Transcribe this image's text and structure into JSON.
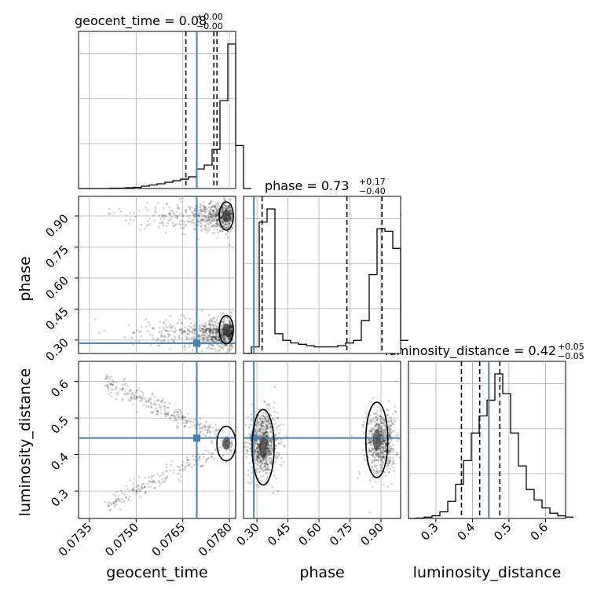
{
  "chart_data": {
    "type": "corner",
    "parameters": [
      "geocent_time",
      "phase",
      "luminosity_distance"
    ],
    "axis_labels": [
      "geocent_time",
      "phase",
      "luminosity_distance"
    ],
    "titles": [
      {
        "prefix": "geocent_time = 0.08",
        "sup": "+0.00",
        "sub": "−0.00"
      },
      {
        "prefix": "phase = 0.73",
        "sup": "+0.17",
        "sub": "−0.40"
      },
      {
        "prefix": "luminosity_distance = 0.42",
        "sup": "+0.05",
        "sub": "−0.05"
      }
    ],
    "ranges": [
      [
        0.07315,
        0.0782
      ],
      [
        0.235,
        0.995
      ],
      [
        0.225,
        0.655
      ]
    ],
    "ticks": [
      {
        "values": [
          0.0735,
          0.075,
          0.0765,
          0.078
        ],
        "labels": [
          "0.0735",
          "0.0750",
          "0.0765",
          "0.0780"
        ]
      },
      {
        "values": [
          0.3,
          0.45,
          0.6,
          0.75,
          0.9
        ],
        "labels": [
          "0.30",
          "0.45",
          "0.60",
          "0.75",
          "0.90"
        ]
      },
      {
        "values": [
          0.3,
          0.4,
          0.5,
          0.6
        ],
        "labels": [
          "0.3",
          "0.4",
          "0.5",
          "0.6"
        ]
      }
    ],
    "truths": [
      0.07695,
      0.285,
      0.445
    ],
    "truth_color": "#4682b4",
    "quantiles": [
      [
        0.0766,
        0.0775,
        0.0776
      ],
      [
        0.325,
        0.735,
        0.905
      ],
      [
        0.37,
        0.42,
        0.475
      ]
    ],
    "histograms": [
      {
        "edges_start": 0.07315,
        "bin_width": 0.0002525,
        "counts": [
          0,
          0,
          0,
          0,
          1,
          1,
          2,
          3,
          6,
          9,
          12,
          16,
          20,
          24,
          30,
          50,
          60,
          100,
          225,
          370,
          110,
          0
        ]
      },
      {
        "edges_start": 0.235,
        "bin_width": 0.038,
        "counts": [
          0,
          0.05,
          1.0,
          1.1,
          0.15,
          0.1,
          0.08,
          0.07,
          0.06,
          0.05,
          0.05,
          0.05,
          0.06,
          0.08,
          0.1,
          0.25,
          0.6,
          0.95,
          0.93,
          0.8,
          0.1
        ]
      },
      {
        "edges_start": 0.225,
        "bin_width": 0.0215,
        "counts": [
          0,
          0.3,
          1,
          2,
          5,
          13,
          26,
          44,
          65,
          78,
          90,
          110,
          95,
          65,
          40,
          22,
          14,
          8,
          4,
          2,
          1
        ]
      }
    ],
    "grid": true
  }
}
